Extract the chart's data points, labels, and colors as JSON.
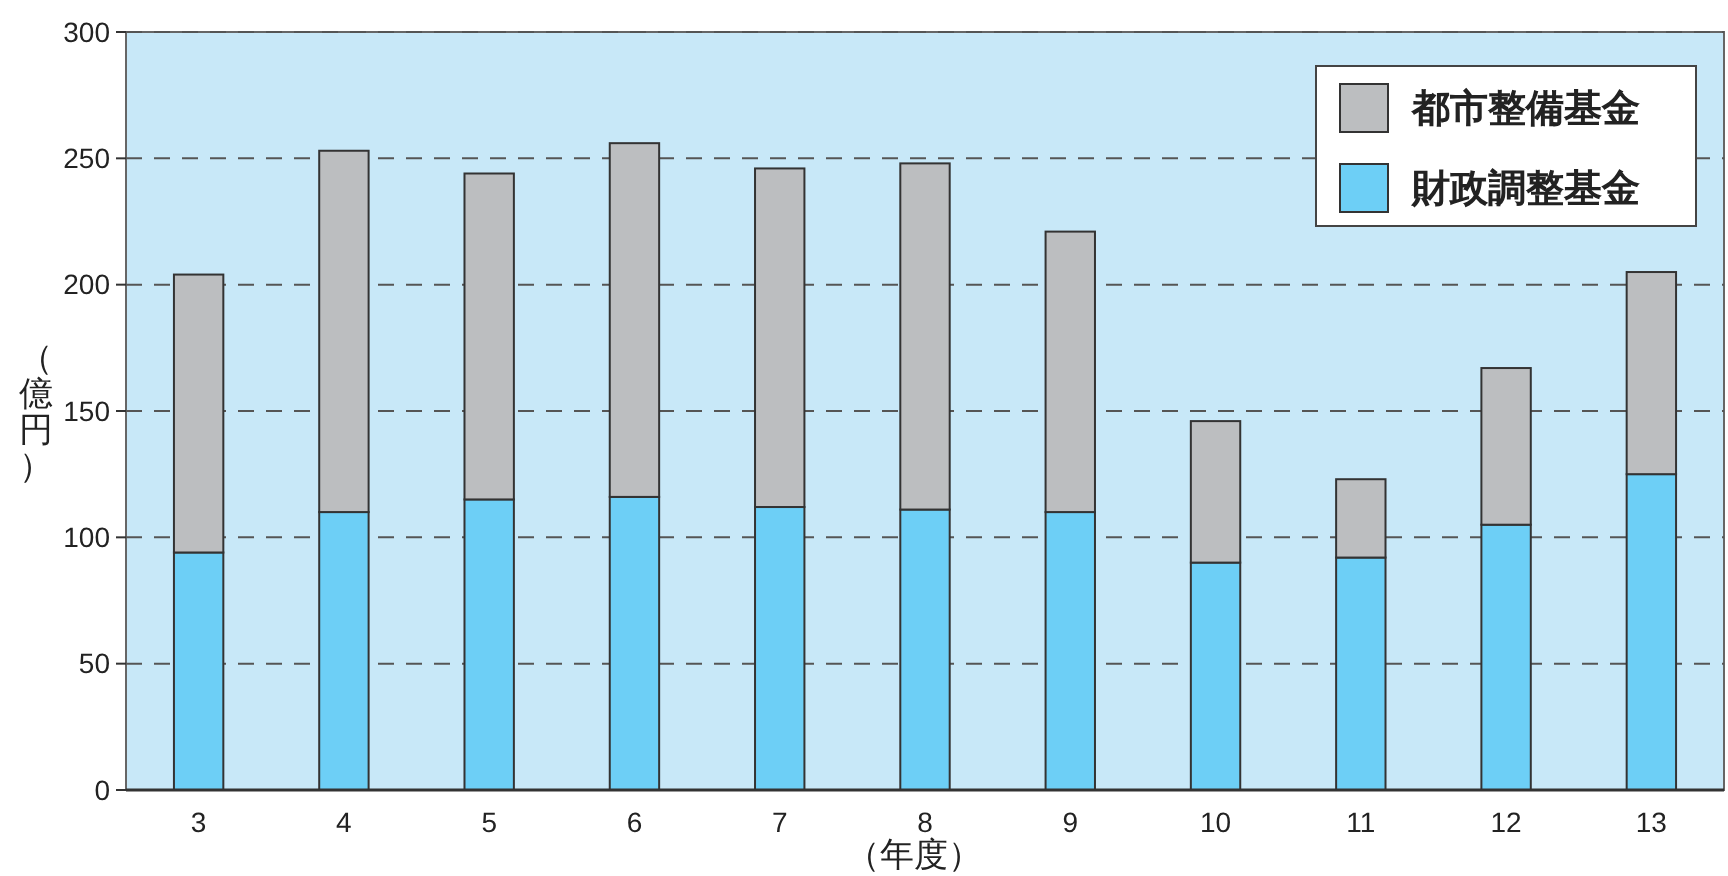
{
  "chart_data": {
    "type": "bar",
    "stacked": true,
    "xlabel": "（年度）",
    "ylabel": "（億円）",
    "categories": [
      "3",
      "4",
      "5",
      "6",
      "7",
      "8",
      "9",
      "10",
      "11",
      "12",
      "13"
    ],
    "series": [
      {
        "name": "財政調整基金",
        "color": "#6dcff6",
        "values": [
          94,
          110,
          115,
          116,
          112,
          111,
          110,
          90,
          92,
          105,
          125
        ]
      },
      {
        "name": "都市整備基金",
        "color": "#bcbec0",
        "values": [
          110,
          143,
          129,
          140,
          134,
          137,
          111,
          56,
          31,
          62,
          80
        ]
      }
    ],
    "ylim": [
      0,
      300
    ],
    "yticks": [
      0,
      50,
      100,
      150,
      200,
      250,
      300
    ],
    "grid": "y",
    "legend": "top right"
  }
}
